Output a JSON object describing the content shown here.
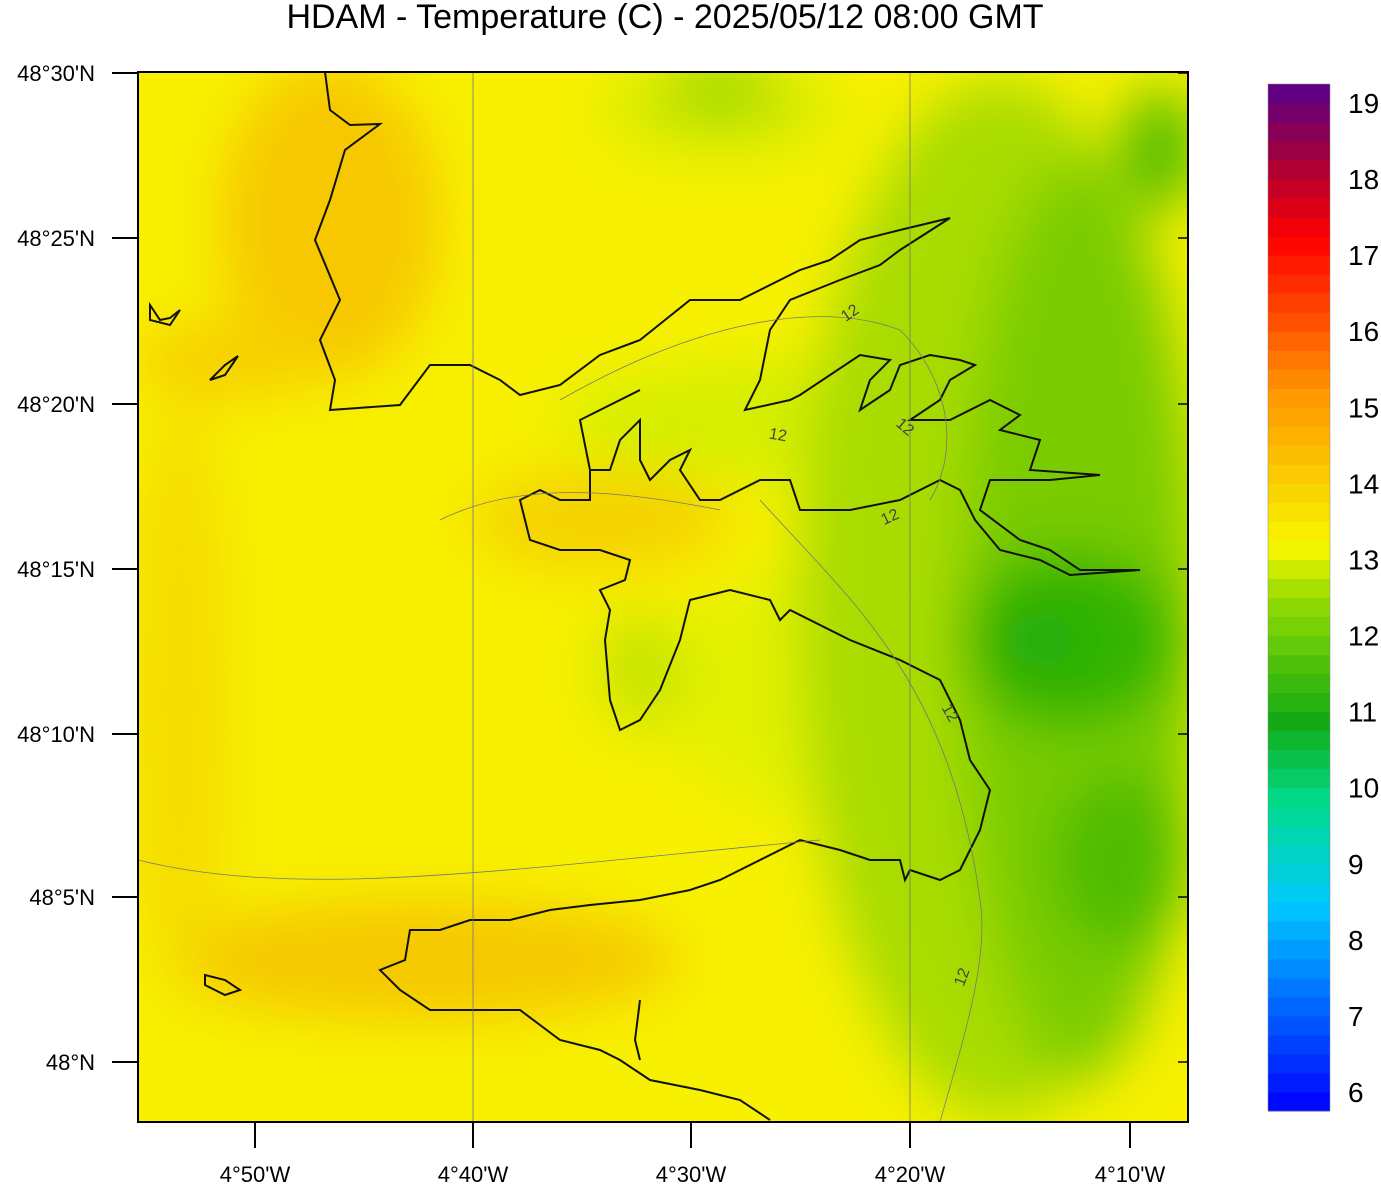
{
  "title": "HDAM - Temperature (C)  -  2025/05/12  08:00 GMT",
  "map": {
    "lat_labels": [
      "48°30'N",
      "48°25'N",
      "48°20'N",
      "48°15'N",
      "48°10'N",
      "48°5'N",
      "48°N"
    ],
    "lon_labels": [
      "4°50'W",
      "4°40'W",
      "4°30'W",
      "4°20'W",
      "4°10'W"
    ],
    "contour_labels": [
      "12",
      "12",
      "12",
      "12",
      "12",
      "12"
    ]
  },
  "colorbar": {
    "ticks": [
      6,
      7,
      8,
      9,
      10,
      11,
      12,
      13,
      14,
      15,
      16,
      17,
      18,
      19
    ],
    "lim": [
      5.75,
      19.25
    ]
  }
}
